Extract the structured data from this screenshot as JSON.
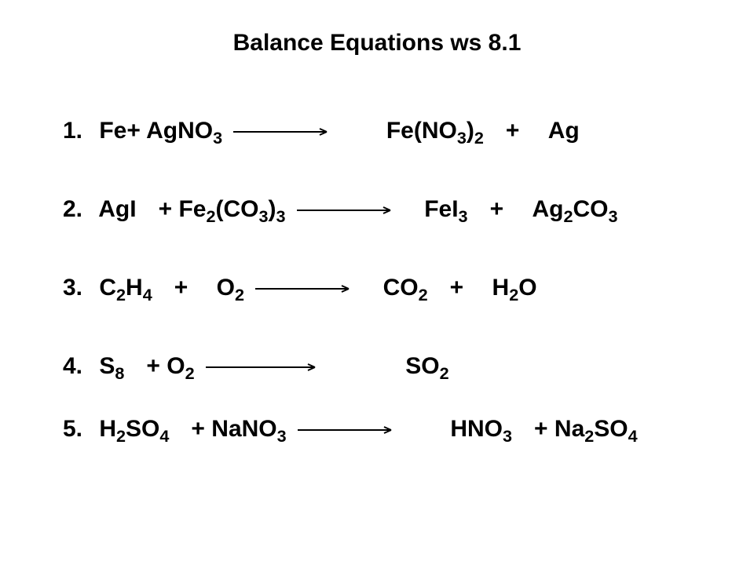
{
  "title": "Balance Equations ws 8.1",
  "text_color": "#000000",
  "background_color": "#ffffff",
  "font_family": "Arial",
  "title_fontsize": 30,
  "equation_fontsize": 30,
  "arrow": {
    "stroke": "#000000",
    "stroke_width": 2,
    "head_len": 10,
    "head_w": 4
  },
  "equations": [
    {
      "number": "1.",
      "left_tokens": [
        {
          "base": "Fe"
        },
        {
          "plus": true
        },
        {
          "base": "AgNO",
          "sub": "3"
        }
      ],
      "arrow_width": 120,
      "gap_after_arrow": "gap-m",
      "right_tokens": [
        {
          "base": "Fe(NO",
          "sub": "3"
        },
        {
          "base": ")",
          "sub": "2"
        },
        {
          "sp": "gap-s"
        },
        {
          "plus": true
        },
        {
          "sp": "gap-s"
        },
        {
          "base": "Ag"
        }
      ]
    },
    {
      "number": "2.",
      "left_tokens": [
        {
          "base": "AgI"
        },
        {
          "sp": "gap-s"
        },
        {
          "plus": true
        },
        {
          "sp": ""
        },
        {
          "base": "Fe",
          "sub": "2"
        },
        {
          "base": "(CO",
          "sub": "3"
        },
        {
          "base": ")",
          "sub": "3"
        }
      ],
      "arrow_width": 120,
      "gap_after_arrow": "gap-s",
      "right_tokens": [
        {
          "base": "FeI",
          "sub": "3"
        },
        {
          "sp": "gap-s"
        },
        {
          "plus": true
        },
        {
          "sp": "gap-s"
        },
        {
          "base": "Ag",
          "sub": "2"
        },
        {
          "base": "CO",
          "sub": "3"
        }
      ]
    },
    {
      "number": "3.",
      "left_tokens": [
        {
          "base": "C",
          "sub": "2"
        },
        {
          "base": "H",
          "sub": "4"
        },
        {
          "sp": "gap-s"
        },
        {
          "plus": true
        },
        {
          "sp": "gap-s"
        },
        {
          "base": "O",
          "sub": "2"
        }
      ],
      "arrow_width": 120,
      "gap_after_arrow": "gap-s",
      "right_tokens": [
        {
          "base": "CO",
          "sub": "2"
        },
        {
          "sp": "gap-s"
        },
        {
          "plus": true
        },
        {
          "sp": "gap-s"
        },
        {
          "base": "H",
          "sub": "2"
        },
        {
          "base": "O"
        }
      ]
    },
    {
      "number": "4.",
      "left_tokens": [
        {
          "sp": ""
        },
        {
          "base": "S",
          "sub": "8"
        },
        {
          "sp": "gap-s"
        },
        {
          "plus": true
        },
        {
          "sp": ""
        },
        {
          "base": "O",
          "sub": "2"
        }
      ],
      "arrow_width": 140,
      "gap_after_arrow": "gap-l",
      "right_tokens": [
        {
          "base": "SO",
          "sub": "2"
        }
      ]
    },
    {
      "number": "5.",
      "left_tokens": [
        {
          "sp": ""
        },
        {
          "base": "H",
          "sub": "2"
        },
        {
          "base": "SO",
          "sub": "4"
        },
        {
          "sp": "gap-s"
        },
        {
          "plus": true
        },
        {
          "sp": ""
        },
        {
          "base": "NaNO",
          "sub": "3"
        }
      ],
      "arrow_width": 120,
      "gap_after_arrow": "gap-m",
      "right_tokens": [
        {
          "base": "HNO",
          "sub": "3"
        },
        {
          "sp": "gap-s"
        },
        {
          "plus": true
        },
        {
          "sp": ""
        },
        {
          "base": "Na",
          "sub": "2"
        },
        {
          "base": "SO",
          "sub": "4"
        }
      ]
    }
  ]
}
